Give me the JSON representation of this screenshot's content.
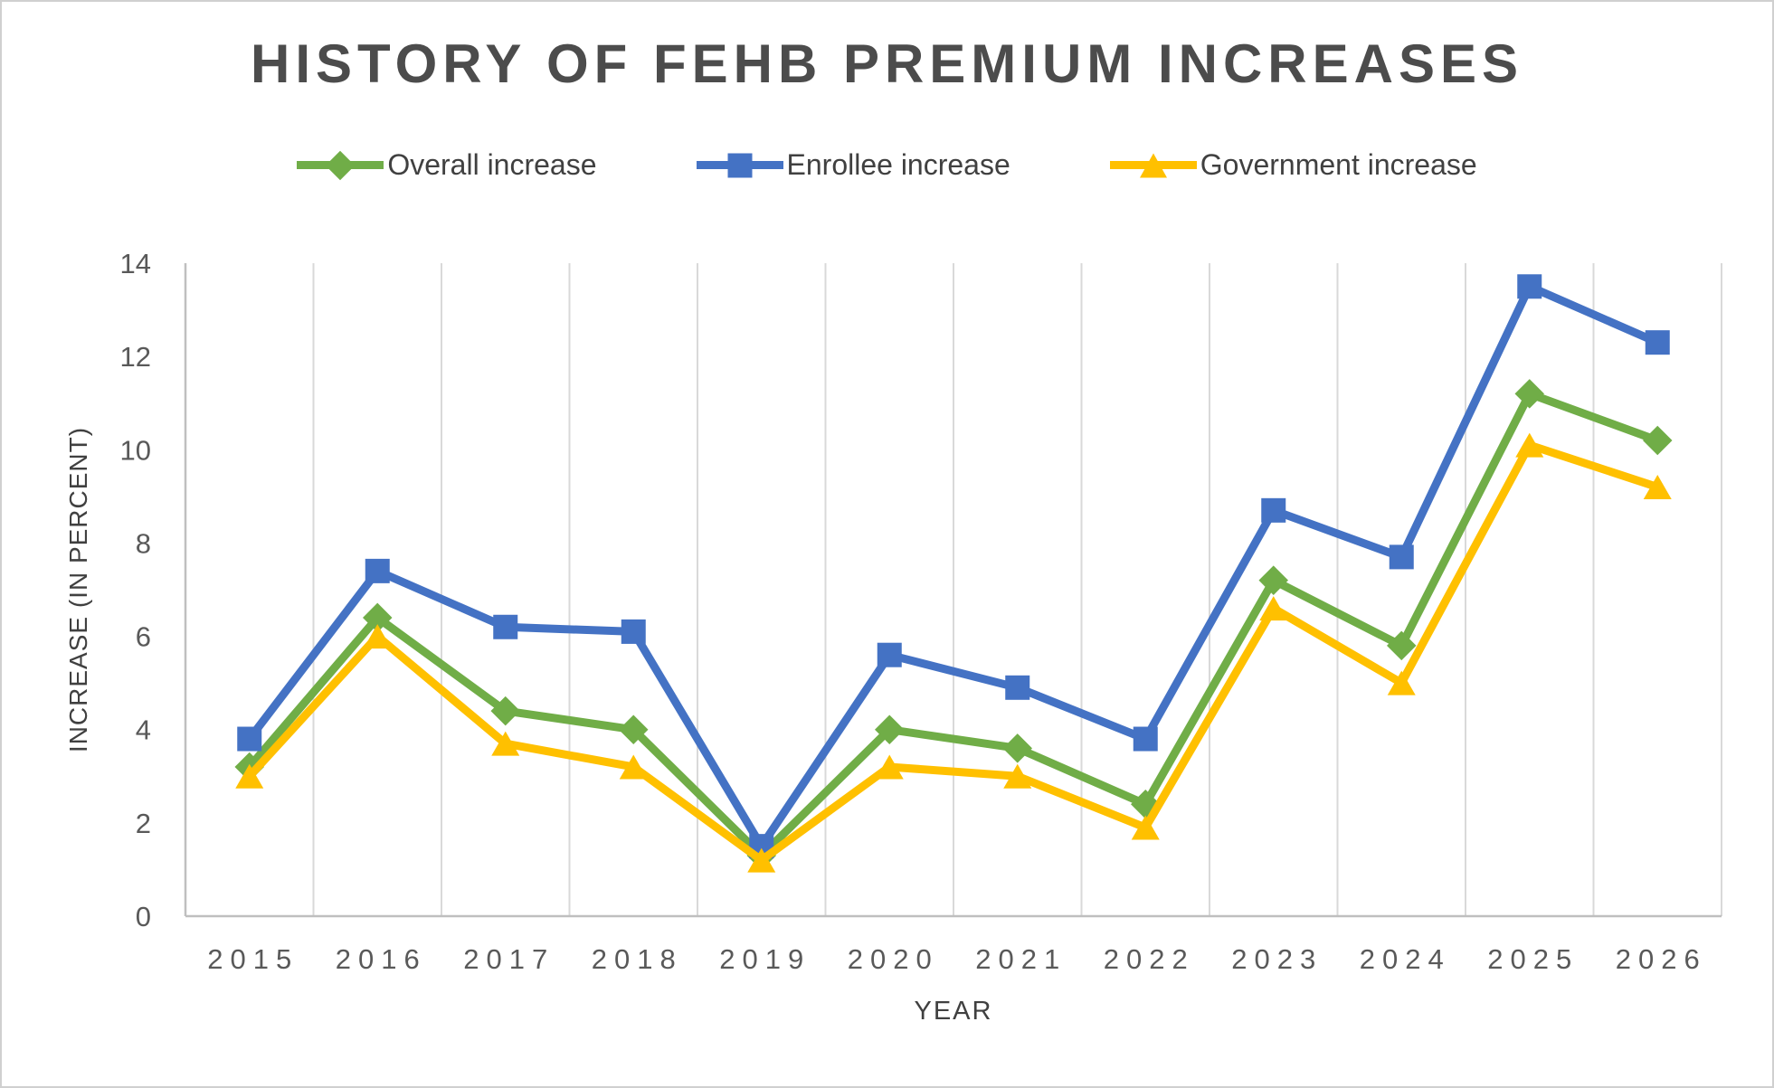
{
  "chart": {
    "title": "HISTORY OF FEHB PREMIUM INCREASES",
    "x_axis_title": "YEAR",
    "y_axis_title": "INCREASE (IN PERCENT)"
  },
  "legend": [
    {
      "label": "Overall increase",
      "marker": "diamond",
      "color": "#70AD47"
    },
    {
      "label": "Enrollee increase",
      "marker": "square",
      "color": "#4472C4"
    },
    {
      "label": "Government increase",
      "marker": "triangle",
      "color": "#FFC000"
    }
  ],
  "chart_data": {
    "type": "line",
    "title": "HISTORY OF FEHB PREMIUM INCREASES",
    "xlabel": "YEAR",
    "ylabel": "INCREASE (IN PERCENT)",
    "categories": [
      "2015",
      "2016",
      "2017",
      "2018",
      "2019",
      "2020",
      "2021",
      "2022",
      "2023",
      "2024",
      "2025",
      "2026"
    ],
    "series": [
      {
        "name": "Overall increase",
        "color": "#70AD47",
        "marker": "diamond",
        "values": [
          3.2,
          6.4,
          4.4,
          4.0,
          1.3,
          4.0,
          3.6,
          2.4,
          7.2,
          5.8,
          11.2,
          10.2
        ]
      },
      {
        "name": "Enrollee increase",
        "color": "#4472C4",
        "marker": "square",
        "values": [
          3.8,
          7.4,
          6.2,
          6.1,
          1.5,
          5.6,
          4.9,
          3.8,
          8.7,
          7.7,
          13.5,
          12.3
        ]
      },
      {
        "name": "Government increase",
        "color": "#FFC000",
        "marker": "triangle",
        "values": [
          3.0,
          6.0,
          3.7,
          3.2,
          1.2,
          3.2,
          3.0,
          1.9,
          6.6,
          5.0,
          10.1,
          9.2
        ]
      }
    ],
    "ylim": [
      0,
      14
    ],
    "ytick_step": 2,
    "grid": "vertical-only",
    "legend_position": "top",
    "colors": {
      "gridline": "#D9D9D9",
      "axis_line": "#BFBFBF",
      "tick_label": "#595959",
      "title": "#4C4C4C",
      "axis_title": "#404040"
    }
  }
}
